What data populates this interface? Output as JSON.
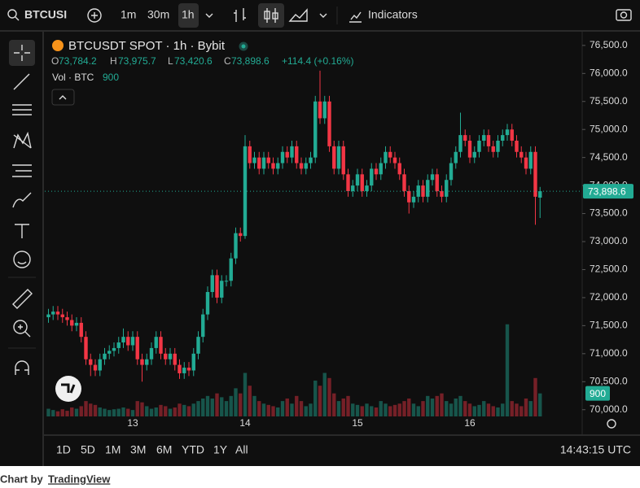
{
  "toolbar": {
    "symbol": "BTCUSI",
    "intervals": [
      "1m",
      "30m",
      "1h"
    ],
    "indicators": "Indicators"
  },
  "legend": {
    "title": "BTCUSDT SPOT · 1h · Bybit",
    "ohlc": [
      {
        "key": "O",
        "value": "73,784.2"
      },
      {
        "key": "H",
        "value": "73,975.7"
      },
      {
        "key": "L",
        "value": "73,420.6"
      },
      {
        "key": "C",
        "value": "73,898.6"
      }
    ],
    "change": "+114.4 (+0.16%)",
    "volume_title": "Vol · BTC",
    "volume_value": "900"
  },
  "chart_data": {
    "type": "candlestick",
    "categories": [
      null,
      null,
      null,
      null,
      null,
      null,
      null,
      null,
      null,
      null,
      null,
      null,
      null,
      null,
      null,
      null,
      null,
      null,
      "13",
      null,
      null,
      null,
      null,
      null,
      null,
      null,
      null,
      null,
      null,
      null,
      null,
      null,
      null,
      null,
      null,
      null,
      null,
      null,
      null,
      null,
      null,
      null,
      "14",
      null,
      null,
      null,
      null,
      null,
      null,
      null,
      null,
      null,
      null,
      null,
      null,
      null,
      null,
      null,
      null,
      null,
      null,
      null,
      null,
      null,
      null,
      null,
      "15",
      null,
      null,
      null,
      null,
      null,
      null,
      null,
      null,
      null,
      null,
      null,
      null,
      null,
      null,
      null,
      null,
      null,
      null,
      null,
      null,
      null,
      null,
      null,
      "16",
      null,
      null,
      null,
      null,
      null,
      null,
      null,
      null,
      null,
      null,
      null,
      null,
      null,
      null,
      null
    ],
    "open": [
      71650,
      71700,
      71750,
      71700,
      71650,
      71600,
      71500,
      71550,
      71300,
      70900,
      70800,
      70700,
      70900,
      71000,
      71050,
      71100,
      71200,
      71300,
      71150,
      71300,
      70900,
      70800,
      70900,
      71100,
      71300,
      71000,
      70900,
      71000,
      70800,
      70650,
      70750,
      70700,
      71000,
      71300,
      71700,
      72100,
      72400,
      72000,
      72300,
      72300,
      72700,
      73150,
      73100,
      74700,
      74400,
      74500,
      74300,
      74500,
      74400,
      74300,
      74400,
      74600,
      74500,
      74700,
      74400,
      74300,
      74400,
      74500,
      75500,
      75200,
      75500,
      74700,
      74300,
      74700,
      74200,
      73900,
      74000,
      74200,
      73900,
      74000,
      74300,
      74200,
      74400,
      74600,
      74500,
      74400,
      74200,
      73900,
      73700,
      73800,
      74000,
      73800,
      74100,
      74200,
      73900,
      73800,
      74100,
      74400,
      74600,
      74900,
      74800,
      74500,
      74600,
      74800,
      74900,
      74700,
      74600,
      74800,
      74900,
      75000,
      74800,
      74600,
      74500,
      74300,
      74600,
      73784.2
    ],
    "high": [
      71800,
      71850,
      71850,
      71800,
      71750,
      71700,
      71650,
      71650,
      71400,
      71000,
      70900,
      71000,
      71100,
      71150,
      71200,
      71300,
      71450,
      71400,
      71400,
      71400,
      71000,
      71000,
      71200,
      71400,
      71400,
      71100,
      71100,
      71100,
      70900,
      70850,
      70850,
      71100,
      71400,
      71800,
      72200,
      72500,
      72500,
      72400,
      72400,
      72800,
      73250,
      73250,
      74900,
      74800,
      74600,
      74600,
      74600,
      74600,
      74500,
      74500,
      74700,
      74700,
      74800,
      74800,
      74500,
      74500,
      74600,
      75600,
      76050,
      75600,
      75600,
      74800,
      74800,
      74800,
      74300,
      74100,
      74300,
      74300,
      74100,
      74400,
      74400,
      74500,
      74700,
      74700,
      74600,
      74500,
      74300,
      74000,
      73900,
      74100,
      74100,
      74200,
      74300,
      74300,
      74000,
      74200,
      74500,
      74700,
      75300,
      75000,
      74900,
      74700,
      74900,
      75000,
      75000,
      74800,
      74900,
      75000,
      75100,
      75100,
      74900,
      74700,
      74600,
      74700,
      74700,
      73975.7
    ],
    "low": [
      71550,
      71600,
      71600,
      71550,
      71500,
      71400,
      71400,
      71200,
      70800,
      70600,
      70600,
      70600,
      70800,
      70900,
      70950,
      71000,
      71100,
      71050,
      71050,
      70800,
      70500,
      70700,
      70800,
      71000,
      70900,
      70800,
      70800,
      70700,
      70550,
      70550,
      70600,
      70600,
      70900,
      71200,
      71600,
      72000,
      71900,
      71900,
      72200,
      72200,
      72600,
      73000,
      73050,
      74300,
      74300,
      74200,
      74200,
      74300,
      74200,
      74200,
      74300,
      74400,
      74400,
      74300,
      74200,
      74200,
      74300,
      74400,
      75100,
      75100,
      74600,
      74200,
      74200,
      74100,
      73800,
      73800,
      73900,
      73800,
      73800,
      73900,
      74100,
      74100,
      74300,
      74400,
      74300,
      74100,
      73800,
      73500,
      73600,
      73700,
      73700,
      73700,
      74000,
      73800,
      73700,
      73700,
      74000,
      74300,
      74500,
      74700,
      74400,
      74400,
      74500,
      74700,
      74600,
      74500,
      74500,
      74700,
      74800,
      74700,
      74500,
      74400,
      74200,
      74200,
      73300,
      73420.6
    ],
    "close": [
      71700,
      71750,
      71700,
      71650,
      71600,
      71500,
      71550,
      71300,
      70900,
      70800,
      70700,
      70900,
      71000,
      71050,
      71100,
      71200,
      71300,
      71150,
      71300,
      70900,
      70800,
      70900,
      71100,
      71300,
      71000,
      70900,
      71000,
      70800,
      70650,
      70750,
      70700,
      71000,
      71300,
      71700,
      72100,
      72400,
      72000,
      72300,
      72300,
      72700,
      73150,
      73100,
      74700,
      74400,
      74500,
      74300,
      74500,
      74400,
      74300,
      74400,
      74600,
      74500,
      74700,
      74400,
      74300,
      74400,
      74500,
      75500,
      75200,
      75500,
      74700,
      74300,
      74700,
      74200,
      73900,
      74000,
      74200,
      73900,
      74000,
      74300,
      74200,
      74400,
      74600,
      74500,
      74400,
      74200,
      73900,
      73700,
      73800,
      74000,
      73800,
      74100,
      74200,
      73900,
      73800,
      74100,
      74400,
      74600,
      74900,
      74800,
      74500,
      74600,
      74800,
      74900,
      74700,
      74600,
      74800,
      74900,
      75000,
      74800,
      74600,
      74500,
      74300,
      74600,
      73800,
      73898.6
    ],
    "volume": [
      300,
      250,
      200,
      280,
      220,
      350,
      300,
      400,
      600,
      500,
      450,
      350,
      300,
      250,
      280,
      300,
      350,
      300,
      250,
      600,
      550,
      400,
      300,
      350,
      450,
      400,
      300,
      350,
      500,
      450,
      400,
      500,
      600,
      700,
      800,
      700,
      900,
      750,
      600,
      800,
      1100,
      900,
      1700,
      1200,
      800,
      600,
      500,
      450,
      400,
      350,
      600,
      700,
      500,
      800,
      600,
      400,
      500,
      1400,
      1200,
      1700,
      1500,
      900,
      600,
      700,
      800,
      500,
      450,
      400,
      500,
      400,
      350,
      600,
      500,
      400,
      450,
      500,
      600,
      700,
      500,
      400,
      600,
      800,
      700,
      800,
      900,
      600,
      500,
      700,
      800,
      600,
      500,
      400,
      450,
      600,
      500,
      400,
      350,
      500,
      3600,
      600,
      500,
      400,
      700,
      600,
      1500,
      900
    ],
    "up_color": "#22ab94",
    "down_color": "#f23645",
    "ylim": [
      69880,
      76730
    ],
    "yticks": [
      {
        "value": 70000,
        "label": "70,000.0"
      },
      {
        "value": 70500,
        "label": "70,500.0"
      },
      {
        "value": 71000,
        "label": "71,000.0"
      },
      {
        "value": 71500,
        "label": "71,500.0"
      },
      {
        "value": 72000,
        "label": "72,000.0"
      },
      {
        "value": 72500,
        "label": "72,500.0"
      },
      {
        "value": 73000,
        "label": "73,000.0"
      },
      {
        "value": 73500,
        "label": "73,500.0"
      },
      {
        "value": 74000,
        "label": "74,000.0"
      },
      {
        "value": 74500,
        "label": "74,500.0"
      },
      {
        "value": 75000,
        "label": "75,000.0"
      },
      {
        "value": 75500,
        "label": "75,500.0"
      },
      {
        "value": 76000,
        "label": "76,000.0"
      },
      {
        "value": 76500,
        "label": "76,500.0"
      }
    ],
    "volume_ylim": [
      0,
      15000
    ],
    "last_price_label": "73,898.6",
    "last_volume_label": "900"
  },
  "ranges": [
    "1D",
    "5D",
    "1M",
    "3M",
    "6M",
    "YTD",
    "1Y",
    "All"
  ],
  "clock": "14:43:15 UTC",
  "footer": {
    "prefix": "Chart by",
    "link": "TradingView"
  }
}
